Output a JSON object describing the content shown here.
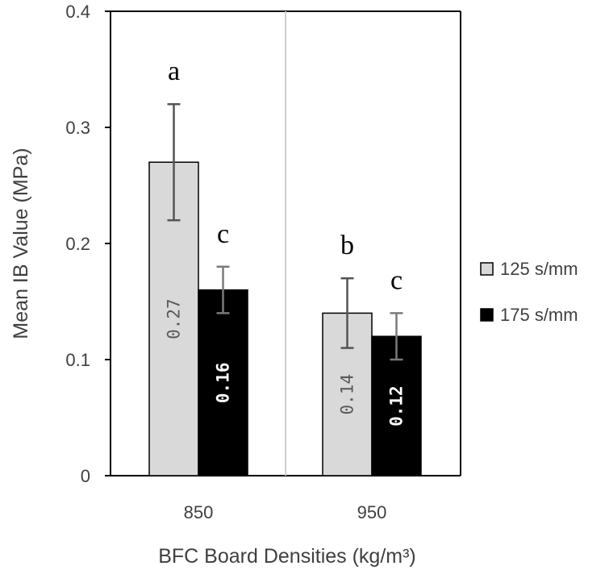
{
  "chart_data": {
    "type": "bar",
    "title": "",
    "xlabel": "BFC Board Densities (kg/m³)",
    "ylabel": "Mean IB Value (MPa)",
    "ylim": [
      0,
      0.4
    ],
    "yticks": [
      "0",
      "0.1",
      "0.2",
      "0.3",
      "0.4"
    ],
    "categories": [
      "850",
      "950"
    ],
    "series": [
      {
        "name": "125 s/mm",
        "color": "#d9d9d9",
        "values": [
          0.27,
          0.14
        ],
        "errors": [
          0.05,
          0.03
        ],
        "value_labels": [
          "0.27",
          "0.14"
        ],
        "significance": [
          "a",
          "b"
        ]
      },
      {
        "name": "175 s/mm",
        "color": "#000000",
        "values": [
          0.16,
          0.12
        ],
        "errors": [
          0.02,
          0.02
        ],
        "value_labels": [
          "0.16",
          "0.12"
        ],
        "significance": [
          "c",
          "c"
        ]
      }
    ],
    "legend_position": "right",
    "grid": false
  }
}
